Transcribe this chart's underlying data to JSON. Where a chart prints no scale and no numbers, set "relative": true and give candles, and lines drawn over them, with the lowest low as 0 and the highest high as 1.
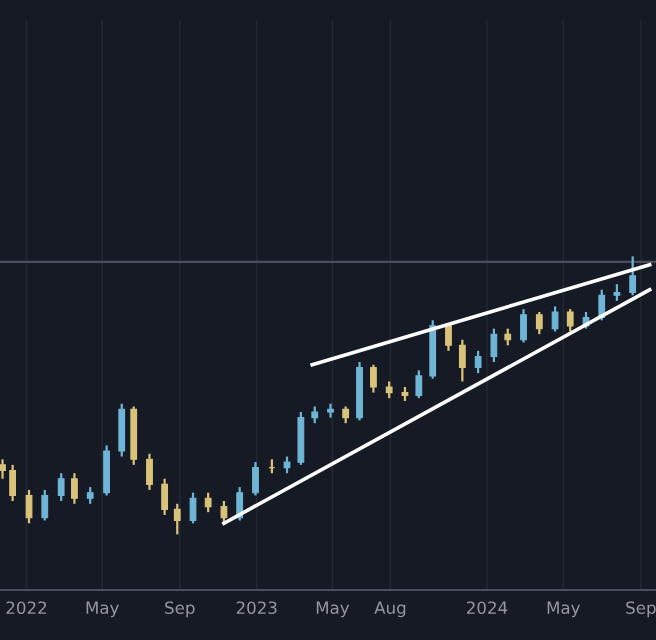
{
  "chart_data": {
    "type": "candlestick",
    "relative": true,
    "tick_labels": "x",
    "grid": "x",
    "x": [
      "2021-11-24",
      "2021-12-10",
      "2022-01-05",
      "2022-01-30",
      "2022-02-25",
      "2022-03-18",
      "2022-04-12",
      "2022-05-08",
      "2022-06-01",
      "2022-06-20",
      "2022-07-15",
      "2022-08-08",
      "2022-08-28",
      "2022-09-22",
      "2022-10-16",
      "2022-11-10",
      "2022-12-05",
      "2022-12-30",
      "2023-01-25",
      "2023-02-18",
      "2023-03-12",
      "2023-04-03",
      "2023-04-28",
      "2023-05-22",
      "2023-06-13",
      "2023-07-05",
      "2023-07-30",
      "2023-08-24",
      "2023-09-15",
      "2023-10-07",
      "2023-11-01",
      "2023-11-23",
      "2023-12-18",
      "2024-01-12",
      "2024-02-03",
      "2024-02-28",
      "2024-03-24",
      "2024-04-18",
      "2024-05-12",
      "2024-06-06",
      "2024-07-01",
      "2024-07-25",
      "2024-08-19"
    ],
    "ohlc": [
      [
        0.25,
        0.27,
        0.2,
        0.23
      ],
      [
        0.23,
        0.25,
        0.12,
        0.14
      ],
      [
        0.14,
        0.16,
        0.04,
        0.06
      ],
      [
        0.06,
        0.16,
        0.05,
        0.14
      ],
      [
        0.14,
        0.22,
        0.12,
        0.2
      ],
      [
        0.2,
        0.22,
        0.11,
        0.13
      ],
      [
        0.13,
        0.17,
        0.11,
        0.15
      ],
      [
        0.15,
        0.32,
        0.14,
        0.3
      ],
      [
        0.3,
        0.47,
        0.28,
        0.45
      ],
      [
        0.45,
        0.46,
        0.25,
        0.27
      ],
      [
        0.27,
        0.29,
        0.16,
        0.18
      ],
      [
        0.18,
        0.2,
        0.07,
        0.09
      ],
      [
        0.09,
        0.11,
        0,
        0.05
      ],
      [
        0.05,
        0.15,
        0.04,
        0.13
      ],
      [
        0.13,
        0.15,
        0.08,
        0.1
      ],
      [
        0.1,
        0.12,
        0.04,
        0.06
      ],
      [
        0.06,
        0.17,
        0.05,
        0.15
      ],
      [
        0.15,
        0.26,
        0.14,
        0.24
      ],
      [
        0.24,
        0.27,
        0.22,
        0.24
      ],
      [
        0.24,
        0.28,
        0.22,
        0.26
      ],
      [
        0.26,
        0.44,
        0.25,
        0.42
      ],
      [
        0.42,
        0.46,
        0.4,
        0.44
      ],
      [
        0.44,
        0.47,
        0.42,
        0.45
      ],
      [
        0.45,
        0.46,
        0.4,
        0.42
      ],
      [
        0.42,
        0.62,
        0.41,
        0.6
      ],
      [
        0.6,
        0.61,
        0.51,
        0.53
      ],
      [
        0.53,
        0.55,
        0.49,
        0.51
      ],
      [
        0.51,
        0.53,
        0.48,
        0.5
      ],
      [
        0.5,
        0.59,
        0.49,
        0.57
      ],
      [
        0.57,
        0.77,
        0.56,
        0.75
      ],
      [
        0.75,
        0.76,
        0.66,
        0.68
      ],
      [
        0.68,
        0.7,
        0.55,
        0.6
      ],
      [
        0.6,
        0.66,
        0.58,
        0.64
      ],
      [
        0.64,
        0.74,
        0.62,
        0.72
      ],
      [
        0.72,
        0.74,
        0.68,
        0.7
      ],
      [
        0.7,
        0.81,
        0.69,
        0.79
      ],
      [
        0.79,
        0.8,
        0.72,
        0.74
      ],
      [
        0.74,
        0.82,
        0.73,
        0.8
      ],
      [
        0.8,
        0.81,
        0.73,
        0.75
      ],
      [
        0.75,
        0.8,
        0.74,
        0.78
      ],
      [
        0.78,
        0.88,
        0.77,
        0.86
      ],
      [
        0.86,
        0.9,
        0.84,
        0.87
      ],
      [
        0.87,
        1,
        0.86,
        0.93
      ]
    ],
    "colors": [
      "#d9c27a",
      "#d9c27a",
      "#d9c27a",
      "#6fb6d6",
      "#6fb6d6",
      "#d9c27a",
      "#6fb6d6",
      "#6fb6d6",
      "#6fb6d6",
      "#d9c27a",
      "#d9c27a",
      "#d9c27a",
      "#d9c27a",
      "#6fb6d6",
      "#d9c27a",
      "#d9c27a",
      "#6fb6d6",
      "#6fb6d6",
      "#d9c27a",
      "#6fb6d6",
      "#6fb6d6",
      "#6fb6d6",
      "#6fb6d6",
      "#d9c27a",
      "#6fb6d6",
      "#d9c27a",
      "#d9c27a",
      "#d9c27a",
      "#6fb6d6",
      "#6fb6d6",
      "#d9c27a",
      "#d9c27a",
      "#6fb6d6",
      "#6fb6d6",
      "#d9c27a",
      "#6fb6d6",
      "#d9c27a",
      "#6fb6d6",
      "#d9c27a",
      "#6fb6d6",
      "#6fb6d6",
      "#6fb6d6",
      "#6fb6d6"
    ],
    "series": [
      {
        "type": "line",
        "color": "#ffffff",
        "x": [
          "2022-11-10",
          "2024-09-15"
        ],
        "values": [
          0.04,
          0.88
        ]
      },
      {
        "type": "line",
        "color": "#ffffff",
        "x": [
          "2023-03-30",
          "2024-09-15"
        ],
        "values": [
          0.61,
          0.97
        ]
      }
    ],
    "ref_lines": [
      {
        "axis": "y",
        "value": 0.98,
        "color": "#4a4f5c"
      }
    ],
    "xlim": [
      "2021-11-20",
      "2024-09-25"
    ],
    "xticks": [
      {
        "value": "2022-01-01",
        "label": "2022"
      },
      {
        "value": "2022-05-01",
        "label": "May"
      },
      {
        "value": "2022-09-01",
        "label": "Sep"
      },
      {
        "value": "2023-01-01",
        "label": "2023"
      },
      {
        "value": "2023-05-01",
        "label": "May"
      },
      {
        "value": "2023-08-01",
        "label": "Aug"
      },
      {
        "value": "2024-01-01",
        "label": "2024"
      },
      {
        "value": "2024-05-01",
        "label": "May"
      },
      {
        "value": "2024-09-01",
        "label": "Sep"
      }
    ]
  }
}
